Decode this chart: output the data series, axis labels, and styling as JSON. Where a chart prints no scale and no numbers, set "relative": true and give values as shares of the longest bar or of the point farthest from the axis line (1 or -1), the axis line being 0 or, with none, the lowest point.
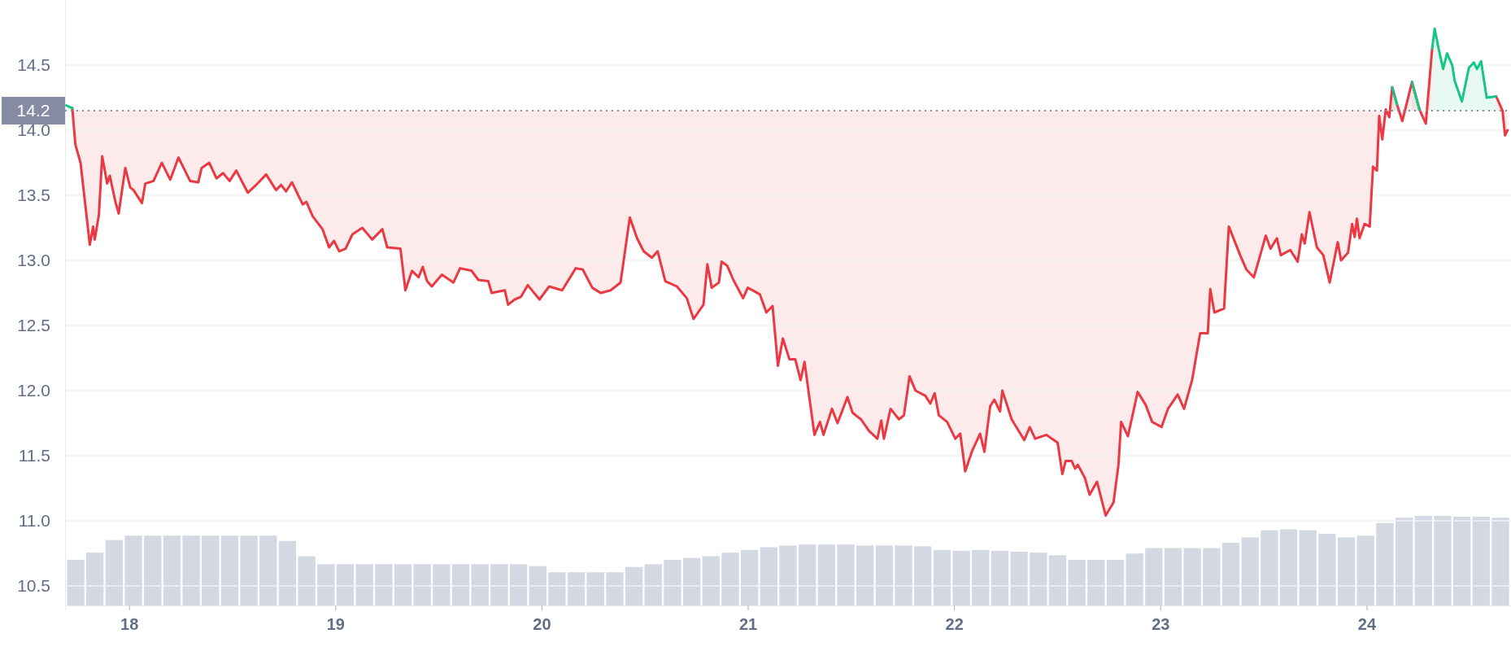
{
  "chart_data": [
    {
      "type": "line",
      "xlim": [
        17.69,
        24.7
      ],
      "xticks": [
        18,
        19,
        20,
        21,
        22,
        23,
        24
      ],
      "ylim": [
        10.35,
        15.0
      ],
      "yticks": [
        10.5,
        {
          "value": 11,
          "label": "11.0"
        },
        11.5,
        {
          "value": 12,
          "label": "12.0"
        },
        12.5,
        {
          "value": 13,
          "label": "13.0"
        },
        13.5,
        {
          "value": 14,
          "label": "14.0"
        },
        14.5
      ],
      "grid": "y",
      "ref_lines": [
        {
          "axis": "y",
          "value": 14.15,
          "label": "14.2",
          "color": "#858ca2",
          "line_style": "dotted"
        }
      ],
      "series": [
        {
          "type": "line",
          "color": "#ea3943",
          "x": [
            17.725,
            17.74,
            17.765,
            17.79,
            17.81,
            17.826,
            17.834,
            17.854,
            17.87,
            17.894,
            17.907,
            17.934,
            17.95,
            17.982,
            18.006,
            18.022,
            18.063,
            18.079,
            18.119,
            18.159,
            18.2,
            18.24,
            18.296,
            18.336,
            18.352,
            18.389,
            18.424,
            18.456,
            18.488,
            18.52,
            18.576,
            18.617,
            18.665,
            18.713,
            18.737,
            18.761,
            18.79,
            18.842,
            18.86,
            18.89,
            18.938,
            18.97,
            18.994,
            19.019,
            19.05,
            19.083,
            19.131,
            19.179,
            19.228,
            19.252,
            19.316,
            19.34,
            19.372,
            19.404,
            19.424,
            19.445,
            19.468,
            19.517,
            19.573,
            19.605,
            19.661,
            19.694,
            19.742,
            19.758,
            19.822,
            19.838,
            19.87,
            19.9,
            19.933,
            19.99,
            20.037,
            20.1,
            20.166,
            20.2,
            20.246,
            20.287,
            20.335,
            20.383,
            20.428,
            20.463,
            20.495,
            20.535,
            20.563,
            20.6,
            20.656,
            20.704,
            20.737,
            20.785,
            20.804,
            20.825,
            20.86,
            20.873,
            20.9,
            20.93,
            20.977,
            21.0,
            21.058,
            21.09,
            21.12,
            21.146,
            21.17,
            21.202,
            21.23,
            21.256,
            21.275,
            21.323,
            21.35,
            21.367,
            21.408,
            21.435,
            21.483,
            21.508,
            21.548,
            21.588,
            21.628,
            21.647,
            21.66,
            21.692,
            21.733,
            21.757,
            21.784,
            21.813,
            21.861,
            21.885,
            21.906,
            21.926,
            21.966,
            22.006,
            22.03,
            22.054,
            22.086,
            22.126,
            22.147,
            22.175,
            22.195,
            22.223,
            22.234,
            22.279,
            22.34,
            22.367,
            22.393,
            22.448,
            22.502,
            22.525,
            22.541,
            22.57,
            22.587,
            22.6,
            22.634,
            22.657,
            22.693,
            22.735,
            22.773,
            22.797,
            22.81,
            22.843,
            22.89,
            22.929,
            22.96,
            23.006,
            23.037,
            23.084,
            23.115,
            23.154,
            23.193,
            23.23,
            23.242,
            23.262,
            23.309,
            23.332,
            23.387,
            23.417,
            23.453,
            23.47,
            23.511,
            23.534,
            23.565,
            23.584,
            23.63,
            23.666,
            23.686,
            23.7,
            23.723,
            23.759,
            23.79,
            23.821,
            23.86,
            23.876,
            23.91,
            23.93,
            23.942,
            23.953,
            23.966,
            23.99,
            24.015,
            24.031,
            24.05,
            24.061,
            24.076,
            24.093,
            24.11,
            24.124,
            24.147,
            24.173,
            24.22,
            24.256,
            24.287,
            24.318,
            24.33,
            24.35,
            24.371,
            24.39,
            24.415,
            24.427,
            24.462,
            24.496,
            24.52,
            24.535,
            24.555,
            24.582,
            24.628,
            24.659,
            24.671,
            24.683
          ],
          "values": [
            14.17,
            13.89,
            13.75,
            13.4,
            13.12,
            13.26,
            13.16,
            13.35,
            13.8,
            13.59,
            13.65,
            13.45,
            13.36,
            13.71,
            13.56,
            13.54,
            13.44,
            13.59,
            13.61,
            13.75,
            13.62,
            13.79,
            13.61,
            13.6,
            13.71,
            13.75,
            13.63,
            13.67,
            13.61,
            13.69,
            13.52,
            13.58,
            13.66,
            13.54,
            13.58,
            13.53,
            13.6,
            13.43,
            13.45,
            13.34,
            13.24,
            13.1,
            13.15,
            13.07,
            13.09,
            13.2,
            13.25,
            13.16,
            13.24,
            13.1,
            13.09,
            12.77,
            12.92,
            12.87,
            12.95,
            12.84,
            12.8,
            12.89,
            12.83,
            12.94,
            12.92,
            12.85,
            12.84,
            12.75,
            12.77,
            12.66,
            12.7,
            12.72,
            12.81,
            12.7,
            12.8,
            12.77,
            12.94,
            12.93,
            12.79,
            12.75,
            12.77,
            12.83,
            13.33,
            13.17,
            13.07,
            13.02,
            13.07,
            12.84,
            12.8,
            12.71,
            12.55,
            12.66,
            12.97,
            12.79,
            12.83,
            12.99,
            12.96,
            12.85,
            12.71,
            12.79,
            12.74,
            12.6,
            12.65,
            12.19,
            12.4,
            12.24,
            12.24,
            12.08,
            12.22,
            11.66,
            11.76,
            11.66,
            11.86,
            11.75,
            11.95,
            11.83,
            11.78,
            11.69,
            11.63,
            11.77,
            11.63,
            11.86,
            11.78,
            11.81,
            12.11,
            12.0,
            11.96,
            11.9,
            11.98,
            11.81,
            11.76,
            11.63,
            11.67,
            11.38,
            11.53,
            11.67,
            11.53,
            11.88,
            11.93,
            11.84,
            12.0,
            11.78,
            11.62,
            11.72,
            11.63,
            11.66,
            11.6,
            11.36,
            11.46,
            11.46,
            11.4,
            11.43,
            11.33,
            11.2,
            11.3,
            11.04,
            11.14,
            11.43,
            11.76,
            11.65,
            11.99,
            11.89,
            11.76,
            11.72,
            11.86,
            11.97,
            11.86,
            12.08,
            12.44,
            12.44,
            12.78,
            12.6,
            12.63,
            13.26,
            13.04,
            12.93,
            12.87,
            12.96,
            13.19,
            13.09,
            13.17,
            13.04,
            13.08,
            12.99,
            13.2,
            13.13,
            13.37,
            13.1,
            13.04,
            12.83,
            13.14,
            13.0,
            13.06,
            13.28,
            13.18,
            13.32,
            13.17,
            13.28,
            13.26,
            13.72,
            13.69,
            14.11,
            13.93,
            14.16,
            14.1,
            14.33,
            14.2,
            14.07,
            14.37,
            14.16,
            14.05,
            14.63,
            null,
            null,
            null,
            null,
            null,
            null,
            null,
            null,
            null,
            null,
            null,
            null,
            14.26,
            14.15,
            13.96,
            14.0
          ]
        },
        {
          "type": "line",
          "color": "#16c784",
          "x": [
            17.696,
            17.725,
            24.11,
            24.124,
            24.147,
            24.173,
            24.22,
            24.256,
            24.287,
            24.318,
            24.33,
            24.35,
            24.371,
            24.39,
            24.415,
            24.427,
            24.462,
            24.496,
            24.52,
            24.535,
            24.555,
            24.582,
            24.628
          ],
          "values": [
            14.19,
            14.17,
            null,
            14.33,
            14.2,
            null,
            14.37,
            14.16,
            null,
            14.63,
            14.78,
            14.62,
            14.47,
            14.59,
            14.5,
            14.38,
            14.22,
            14.48,
            14.52,
            14.47,
            14.53,
            14.25,
            14.26
          ]
        }
      ]
    },
    {
      "type": "bar",
      "relative": true,
      "tick_labels": false,
      "color": "#d3d8e2",
      "categories": [
        null,
        null,
        null,
        null,
        null,
        null,
        null,
        null,
        null,
        null,
        null,
        null,
        null,
        null,
        null,
        null,
        null,
        null,
        null,
        null,
        null,
        null,
        null,
        null,
        null,
        null,
        null,
        null,
        null,
        null,
        null,
        null,
        null,
        null,
        null,
        null,
        null,
        null,
        null,
        null,
        null,
        null,
        null,
        null,
        null,
        null,
        null,
        null,
        null,
        null,
        null,
        null,
        null,
        null,
        null,
        null,
        null,
        null,
        null,
        null,
        null,
        null,
        null,
        null,
        null,
        null,
        null,
        null,
        null,
        null,
        null,
        null,
        null,
        null,
        null
      ],
      "values": [
        0.51,
        0.59,
        0.73,
        0.78,
        0.78,
        0.78,
        0.78,
        0.78,
        0.78,
        0.78,
        0.78,
        0.72,
        0.55,
        0.46,
        0.46,
        0.46,
        0.46,
        0.46,
        0.46,
        0.46,
        0.46,
        0.46,
        0.46,
        0.46,
        0.44,
        0.37,
        0.37,
        0.37,
        0.37,
        0.43,
        0.46,
        0.51,
        0.53,
        0.55,
        0.59,
        0.62,
        0.65,
        0.67,
        0.68,
        0.68,
        0.68,
        0.67,
        0.67,
        0.67,
        0.66,
        0.62,
        0.61,
        0.62,
        0.61,
        0.6,
        0.59,
        0.56,
        0.51,
        0.51,
        0.51,
        0.58,
        0.64,
        0.64,
        0.64,
        0.64,
        0.7,
        0.76,
        0.84,
        0.85,
        0.84,
        0.8,
        0.76,
        0.78,
        0.92,
        0.98,
        1,
        1,
        0.99,
        0.99,
        0.98
      ]
    }
  ]
}
